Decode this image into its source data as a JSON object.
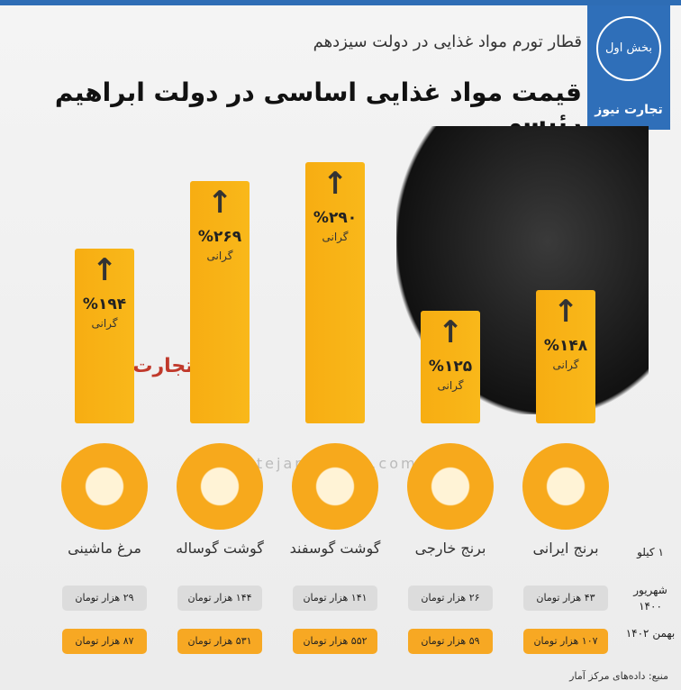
{
  "chart_data": {
    "type": "bar",
    "subtitle": "قطار تورم مواد غذایی در دولت سیزدهم",
    "title": "قیمت مواد غذایی اساسی در دولت ابراهیم رئیسی",
    "categories": [
      "برنج ایرانی",
      "برنج خارجی",
      "گوشت گوسفند",
      "گوشت گوساله",
      "مرغ ماشینی"
    ],
    "values": [
      148,
      125,
      290,
      269,
      194
    ],
    "value_labels": [
      "%۱۴۸",
      "%۱۲۵",
      "%۲۹۰",
      "%۲۶۹",
      "%۱۹۴"
    ],
    "value_note": "گرانی",
    "color": "#f9b81a"
  },
  "badge": "بخش اول",
  "logo": "تجارت نیوز",
  "watermark": "www.tejaratnews.com",
  "table": {
    "unit_header": "۱ کیلو",
    "rows": [
      {
        "label": "شهریور ۱۴۰۰",
        "cells": [
          "۴۳ هزار تومان",
          "۲۶ هزار تومان",
          "۱۴۱ هزار تومان",
          "۱۴۴ هزار تومان",
          "۲۹ هزار تومان"
        ]
      },
      {
        "label": "بهمن ۱۴۰۲",
        "cells": [
          "۱۰۷ هزار تومان",
          "۵۹ هزار تومان",
          "۵۵۲ هزار تومان",
          "۵۳۱ هزار تومان",
          "۸۷ هزار تومان"
        ]
      }
    ]
  },
  "source": "منبع: داده‌های مرکز آمار"
}
